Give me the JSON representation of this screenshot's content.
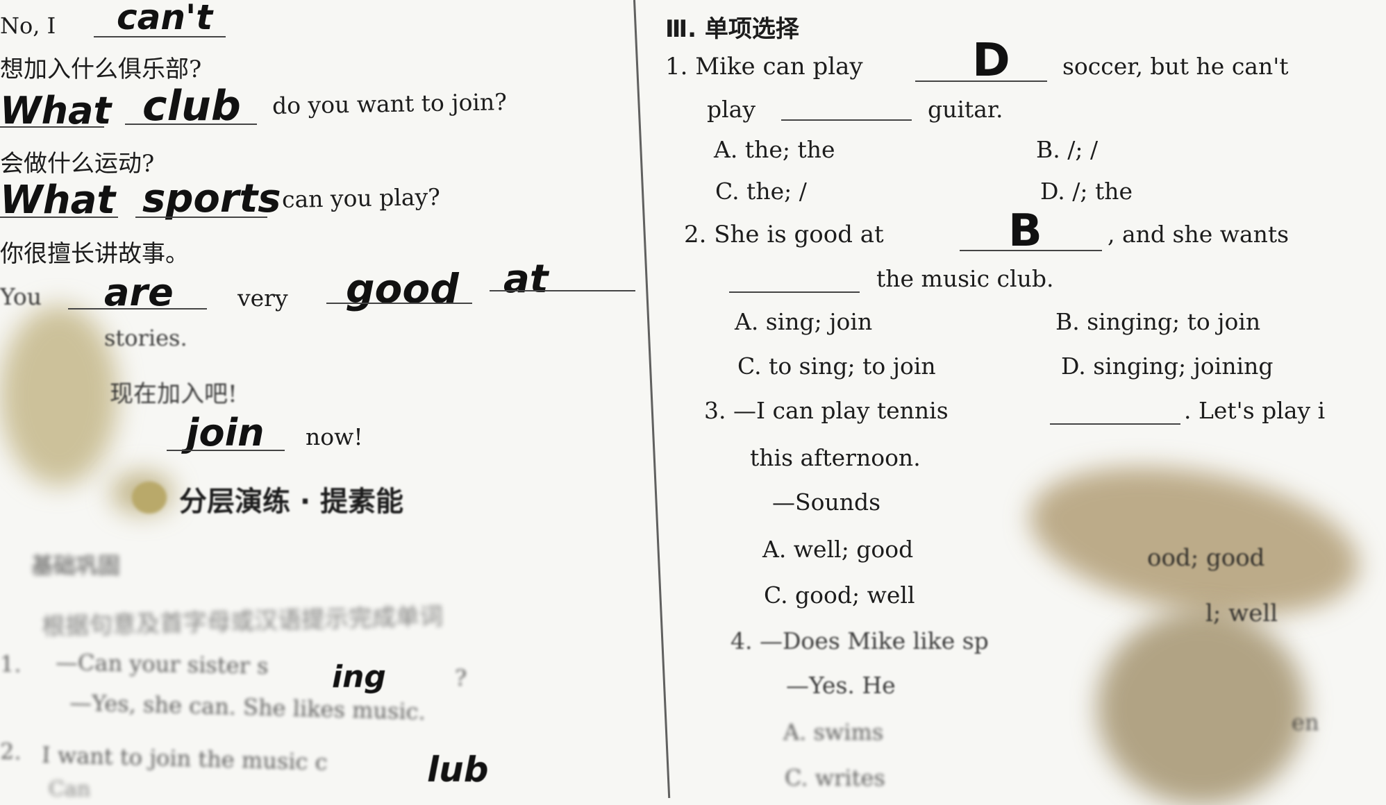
{
  "left": {
    "line1": "No, I",
    "answer1": "can't",
    "line2_cn": "想加入什么俱乐部?",
    "answer2a": "What",
    "answer2b": "club",
    "line2_en": "do you want to join?",
    "line3_cn": "会做什么运动?",
    "answer3a": "What",
    "answer3b": "sports",
    "line3_en": "can you play?",
    "line4_cn": "你很擅长讲故事。",
    "line4_you": "You",
    "answer4a": "are",
    "line4_very": "very",
    "answer4b": "good",
    "answer4c": "at",
    "line4b": "stories.",
    "line5_cn": "现在加入吧!",
    "answer5": "join",
    "line5_en": "now!",
    "section_title": "分层演练 · 提素能",
    "subsection": "基础巩固",
    "instruction": "根据句意及首字母或汉语提示完成单词",
    "q1_num": "1.",
    "q1_text": "—Can your sister s",
    "q1_answer": "ing",
    "q1_end": "?",
    "q1b": "—Yes, she can. She likes music.",
    "q2_num": "2.",
    "q2_text": "I want to join the music c",
    "q2_answer": "lub",
    "q2b": "Can"
  },
  "right": {
    "section": "Ⅲ. 单项选择",
    "q1": {
      "stem_a": "1. Mike can play",
      "answer": "D",
      "stem_b": "soccer, but he can't",
      "stem_c": "play",
      "stem_d": "guitar.",
      "A": "A. the; the",
      "B": "B. /; /",
      "C": "C. the; /",
      "D": "D. /; the"
    },
    "q2": {
      "stem_a": "2. She is good at",
      "answer": "B",
      "stem_b": ", and she wants",
      "stem_c": "the music club.",
      "A": "A. sing; join",
      "B": "B. singing; to join",
      "C": "C. to sing; to join",
      "D": "D. singing; joining"
    },
    "q3": {
      "stem_a": "3. —I can play tennis",
      "stem_b": ". Let's play i",
      "stem_c": "this afternoon.",
      "stem_d": "—Sounds",
      "A": "A. well; good",
      "B": "ood; good",
      "C": "C. good; well",
      "D": "l; well"
    },
    "q4": {
      "stem_a": "4. —Does Mike like sp",
      "stem_b": "—Yes. He",
      "A": "A. swims",
      "C": "C. writes",
      "frag": "en"
    }
  }
}
